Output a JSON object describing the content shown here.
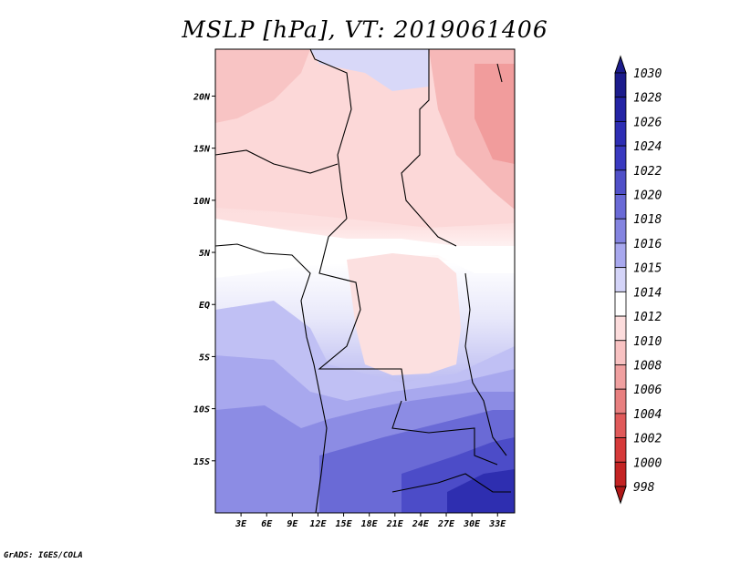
{
  "title": "MSLP [hPa], VT: 2019061406",
  "credit": "GrADS: IGES/COLA",
  "map": {
    "variable": "MSLP",
    "units": "hPa",
    "valid_time": "2019061406",
    "lat_labels": [
      "20N",
      "15N",
      "10N",
      "5N",
      "EQ",
      "5S",
      "10S",
      "15S"
    ],
    "lon_labels": [
      "3E",
      "6E",
      "9E",
      "12E",
      "15E",
      "18E",
      "21E",
      "24E",
      "27E",
      "30E",
      "33E"
    ],
    "lat_range": [
      -20,
      24.5
    ],
    "lon_range": [
      0,
      35
    ]
  },
  "colorbar": {
    "labels": [
      "1030",
      "1028",
      "1026",
      "1024",
      "1022",
      "1020",
      "1018",
      "1016",
      "1015",
      "1014",
      "1012",
      "1010",
      "1008",
      "1006",
      "1004",
      "1002",
      "1000",
      "998"
    ],
    "colors": [
      "#1c1c8c",
      "#2424a4",
      "#2e2eb4",
      "#3a3ac0",
      "#5050c8",
      "#6a6ad6",
      "#8484e0",
      "#a8a8ee",
      "#d4d4f8",
      "#ffffff",
      "#fcdcdc",
      "#f8c2c2",
      "#f0a0a0",
      "#e88080",
      "#e05a5a",
      "#d63a3a",
      "#c42424",
      "#b01818"
    ]
  }
}
